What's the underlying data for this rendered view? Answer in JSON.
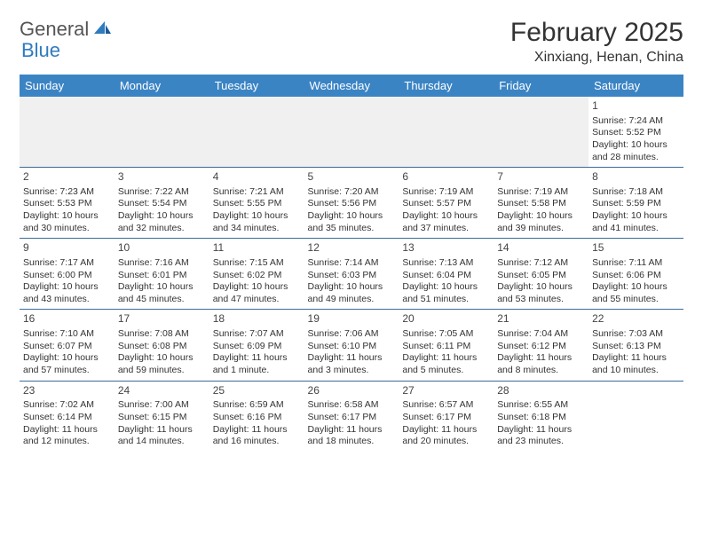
{
  "logo": {
    "text1": "General",
    "text2": "Blue"
  },
  "title": "February 2025",
  "location": "Xinxiang, Henan, China",
  "colors": {
    "header_bg": "#3b84c4",
    "header_text": "#ffffff",
    "row_border": "#3b6a9a",
    "blank_bg": "#f0f0f0",
    "logo_gray": "#555555",
    "logo_blue": "#2f7bbf"
  },
  "weekdays": [
    "Sunday",
    "Monday",
    "Tuesday",
    "Wednesday",
    "Thursday",
    "Friday",
    "Saturday"
  ],
  "weeks": [
    [
      null,
      null,
      null,
      null,
      null,
      null,
      {
        "d": "1",
        "sr": "Sunrise: 7:24 AM",
        "ss": "Sunset: 5:52 PM",
        "dl": "Daylight: 10 hours and 28 minutes."
      }
    ],
    [
      {
        "d": "2",
        "sr": "Sunrise: 7:23 AM",
        "ss": "Sunset: 5:53 PM",
        "dl": "Daylight: 10 hours and 30 minutes."
      },
      {
        "d": "3",
        "sr": "Sunrise: 7:22 AM",
        "ss": "Sunset: 5:54 PM",
        "dl": "Daylight: 10 hours and 32 minutes."
      },
      {
        "d": "4",
        "sr": "Sunrise: 7:21 AM",
        "ss": "Sunset: 5:55 PM",
        "dl": "Daylight: 10 hours and 34 minutes."
      },
      {
        "d": "5",
        "sr": "Sunrise: 7:20 AM",
        "ss": "Sunset: 5:56 PM",
        "dl": "Daylight: 10 hours and 35 minutes."
      },
      {
        "d": "6",
        "sr": "Sunrise: 7:19 AM",
        "ss": "Sunset: 5:57 PM",
        "dl": "Daylight: 10 hours and 37 minutes."
      },
      {
        "d": "7",
        "sr": "Sunrise: 7:19 AM",
        "ss": "Sunset: 5:58 PM",
        "dl": "Daylight: 10 hours and 39 minutes."
      },
      {
        "d": "8",
        "sr": "Sunrise: 7:18 AM",
        "ss": "Sunset: 5:59 PM",
        "dl": "Daylight: 10 hours and 41 minutes."
      }
    ],
    [
      {
        "d": "9",
        "sr": "Sunrise: 7:17 AM",
        "ss": "Sunset: 6:00 PM",
        "dl": "Daylight: 10 hours and 43 minutes."
      },
      {
        "d": "10",
        "sr": "Sunrise: 7:16 AM",
        "ss": "Sunset: 6:01 PM",
        "dl": "Daylight: 10 hours and 45 minutes."
      },
      {
        "d": "11",
        "sr": "Sunrise: 7:15 AM",
        "ss": "Sunset: 6:02 PM",
        "dl": "Daylight: 10 hours and 47 minutes."
      },
      {
        "d": "12",
        "sr": "Sunrise: 7:14 AM",
        "ss": "Sunset: 6:03 PM",
        "dl": "Daylight: 10 hours and 49 minutes."
      },
      {
        "d": "13",
        "sr": "Sunrise: 7:13 AM",
        "ss": "Sunset: 6:04 PM",
        "dl": "Daylight: 10 hours and 51 minutes."
      },
      {
        "d": "14",
        "sr": "Sunrise: 7:12 AM",
        "ss": "Sunset: 6:05 PM",
        "dl": "Daylight: 10 hours and 53 minutes."
      },
      {
        "d": "15",
        "sr": "Sunrise: 7:11 AM",
        "ss": "Sunset: 6:06 PM",
        "dl": "Daylight: 10 hours and 55 minutes."
      }
    ],
    [
      {
        "d": "16",
        "sr": "Sunrise: 7:10 AM",
        "ss": "Sunset: 6:07 PM",
        "dl": "Daylight: 10 hours and 57 minutes."
      },
      {
        "d": "17",
        "sr": "Sunrise: 7:08 AM",
        "ss": "Sunset: 6:08 PM",
        "dl": "Daylight: 10 hours and 59 minutes."
      },
      {
        "d": "18",
        "sr": "Sunrise: 7:07 AM",
        "ss": "Sunset: 6:09 PM",
        "dl": "Daylight: 11 hours and 1 minute."
      },
      {
        "d": "19",
        "sr": "Sunrise: 7:06 AM",
        "ss": "Sunset: 6:10 PM",
        "dl": "Daylight: 11 hours and 3 minutes."
      },
      {
        "d": "20",
        "sr": "Sunrise: 7:05 AM",
        "ss": "Sunset: 6:11 PM",
        "dl": "Daylight: 11 hours and 5 minutes."
      },
      {
        "d": "21",
        "sr": "Sunrise: 7:04 AM",
        "ss": "Sunset: 6:12 PM",
        "dl": "Daylight: 11 hours and 8 minutes."
      },
      {
        "d": "22",
        "sr": "Sunrise: 7:03 AM",
        "ss": "Sunset: 6:13 PM",
        "dl": "Daylight: 11 hours and 10 minutes."
      }
    ],
    [
      {
        "d": "23",
        "sr": "Sunrise: 7:02 AM",
        "ss": "Sunset: 6:14 PM",
        "dl": "Daylight: 11 hours and 12 minutes."
      },
      {
        "d": "24",
        "sr": "Sunrise: 7:00 AM",
        "ss": "Sunset: 6:15 PM",
        "dl": "Daylight: 11 hours and 14 minutes."
      },
      {
        "d": "25",
        "sr": "Sunrise: 6:59 AM",
        "ss": "Sunset: 6:16 PM",
        "dl": "Daylight: 11 hours and 16 minutes."
      },
      {
        "d": "26",
        "sr": "Sunrise: 6:58 AM",
        "ss": "Sunset: 6:17 PM",
        "dl": "Daylight: 11 hours and 18 minutes."
      },
      {
        "d": "27",
        "sr": "Sunrise: 6:57 AM",
        "ss": "Sunset: 6:17 PM",
        "dl": "Daylight: 11 hours and 20 minutes."
      },
      {
        "d": "28",
        "sr": "Sunrise: 6:55 AM",
        "ss": "Sunset: 6:18 PM",
        "dl": "Daylight: 11 hours and 23 minutes."
      },
      null
    ]
  ]
}
